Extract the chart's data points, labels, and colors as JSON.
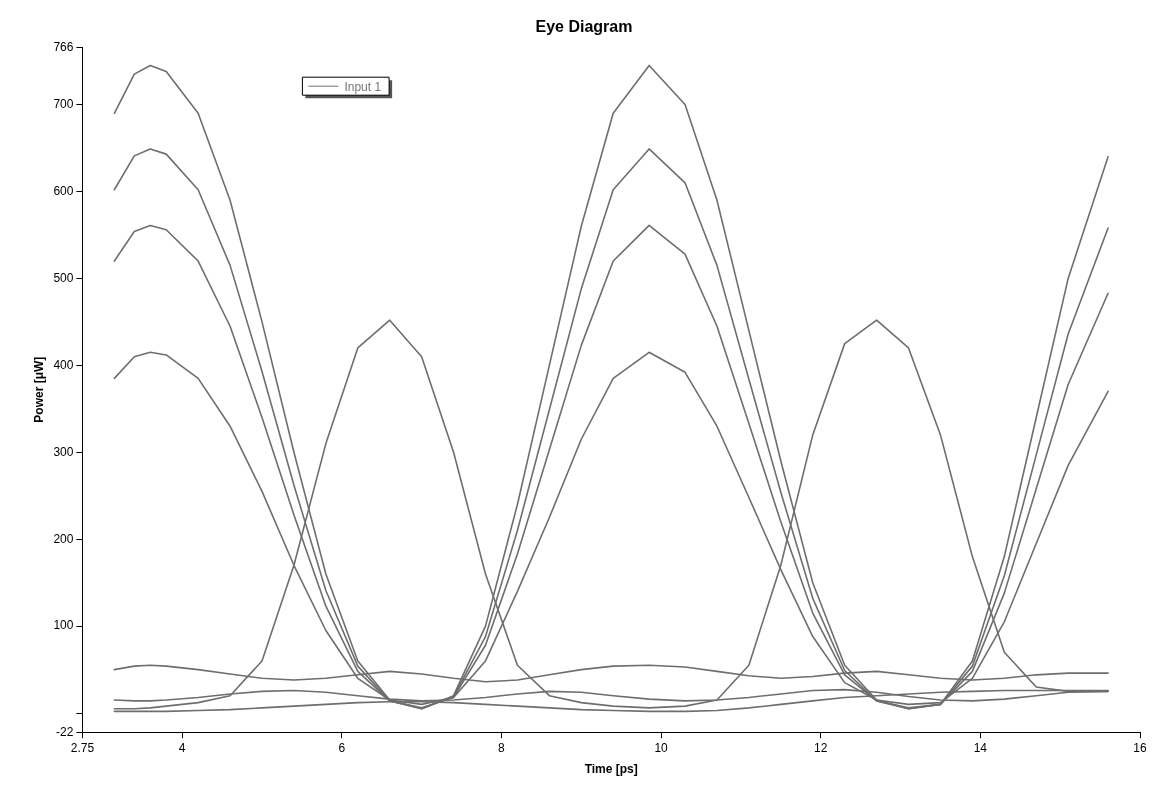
{
  "chart_data": {
    "type": "line",
    "title": "Eye Diagram",
    "xlabel": "Time [ps]",
    "ylabel": "Power [μW]",
    "x": [
      3.15,
      3.4,
      3.6,
      3.8,
      4.2,
      4.6,
      5.0,
      5.4,
      5.8,
      6.2,
      6.6,
      7.0,
      7.4,
      7.8,
      8.2,
      8.6,
      9.0,
      9.4,
      9.85,
      10.3,
      10.7,
      11.1,
      11.5,
      11.9,
      12.3,
      12.7,
      13.1,
      13.5,
      13.9,
      14.3,
      14.7,
      15.1,
      15.6
    ],
    "xlim": [
      2.75,
      16
    ],
    "xticks": [
      2.75,
      4,
      6,
      8,
      10,
      12,
      14,
      16
    ],
    "ylim": [
      -22,
      766
    ],
    "yticks": [
      -22,
      {
        "value": 0,
        "label": null
      },
      100,
      200,
      300,
      400,
      500,
      600,
      700,
      766
    ],
    "grid": false,
    "legend": "top left",
    "marker": "none",
    "line_style": "solid",
    "series": [
      {
        "name": "Input 1",
        "color": "#6e6e6e",
        "values": [
          690,
          735,
          745,
          738,
          690,
          590,
          450,
          300,
          160,
          60,
          15,
          5,
          20,
          100,
          240,
          400,
          560,
          690,
          745,
          700,
          590,
          440,
          290,
          150,
          55,
          15,
          5,
          10,
          60,
          180,
          340,
          500,
          640
        ]
      },
      {
        "color": "#6e6e6e",
        "values": [
          385,
          410,
          415,
          412,
          385,
          330,
          255,
          170,
          95,
          40,
          15,
          10,
          18,
          60,
          140,
          225,
          315,
          385,
          415,
          392,
          330,
          248,
          165,
          88,
          35,
          15,
          10,
          12,
          40,
          105,
          195,
          285,
          370
        ]
      },
      {
        "color": "#6e6e6e",
        "values": [
          520,
          554,
          561,
          556,
          520,
          445,
          340,
          228,
          123,
          48,
          14,
          6,
          18,
          78,
          183,
          303,
          423,
          520,
          561,
          528,
          445,
          333,
          220,
          115,
          44,
          14,
          6,
          10,
          48,
          138,
          258,
          378,
          483
        ]
      },
      {
        "color": "#6e6e6e",
        "values": [
          602,
          641,
          649,
          643,
          602,
          515,
          393,
          262,
          141,
          54,
          14,
          5,
          19,
          88,
          210,
          349,
          488,
          602,
          649,
          610,
          515,
          384,
          254,
          132,
          49,
          14,
          5,
          10,
          54,
          158,
          297,
          436,
          558
        ]
      },
      {
        "color": "#6e6e6e",
        "values": [
          5,
          5,
          6,
          8,
          12,
          20,
          60,
          170,
          310,
          420,
          452,
          410,
          300,
          160,
          55,
          20,
          12,
          8,
          6,
          8,
          15,
          55,
          170,
          320,
          425,
          452,
          420,
          320,
          180,
          70,
          30,
          25,
          25
        ]
      },
      {
        "color": "#6e6e6e",
        "values": [
          50,
          54,
          55,
          54,
          50,
          45,
          40,
          38,
          40,
          44,
          48,
          45,
          40,
          36,
          38,
          44,
          50,
          54,
          55,
          53,
          48,
          43,
          40,
          42,
          46,
          48,
          44,
          40,
          38,
          40,
          44,
          46,
          46
        ]
      },
      {
        "color": "#6e6e6e",
        "values": [
          15,
          14,
          14,
          15,
          18,
          22,
          25,
          26,
          24,
          20,
          16,
          14,
          15,
          18,
          22,
          25,
          24,
          20,
          16,
          14,
          15,
          18,
          22,
          26,
          27,
          24,
          19,
          15,
          14,
          16,
          20,
          24,
          25
        ]
      },
      {
        "color": "#6e6e6e",
        "values": [
          2,
          2,
          2,
          2,
          3,
          4,
          6,
          8,
          10,
          12,
          13,
          13,
          12,
          10,
          8,
          6,
          4,
          3,
          2,
          2,
          3,
          6,
          10,
          14,
          18,
          20,
          22,
          24,
          25,
          26,
          26,
          26,
          26
        ]
      }
    ]
  }
}
